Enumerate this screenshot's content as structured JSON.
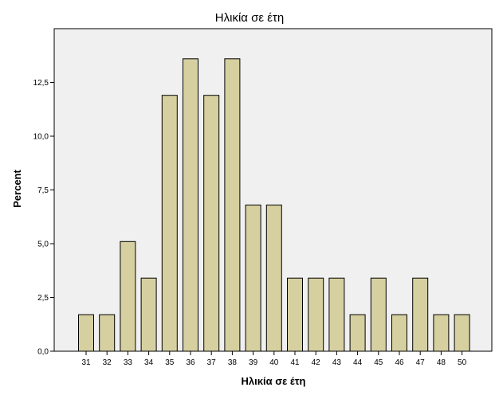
{
  "chart_data": {
    "type": "bar",
    "title": "Ηλικία σε έτη",
    "xlabel": "Ηλικία σε έτη",
    "ylabel": "Percent",
    "categories": [
      "31",
      "32",
      "33",
      "34",
      "35",
      "36",
      "37",
      "38",
      "39",
      "40",
      "41",
      "42",
      "43",
      "44",
      "45",
      "46",
      "47",
      "48",
      "50"
    ],
    "values": [
      1.7,
      1.7,
      5.1,
      3.4,
      11.9,
      13.6,
      11.9,
      13.6,
      6.8,
      6.8,
      3.4,
      3.4,
      3.4,
      1.7,
      3.4,
      1.7,
      3.4,
      1.7,
      1.7
    ],
    "ylim": [
      0,
      15
    ],
    "yticks": [
      0,
      2.5,
      5,
      7.5,
      10,
      12.5
    ],
    "ytick_labels": [
      "0,0",
      "2,5",
      "5,0",
      "7,5",
      "10,0",
      "12,5"
    ],
    "grid": false,
    "colors": {
      "bar_fill": "#d6cfa0",
      "bar_stroke": "#000000",
      "plot_background": "#f0f0f0"
    }
  }
}
